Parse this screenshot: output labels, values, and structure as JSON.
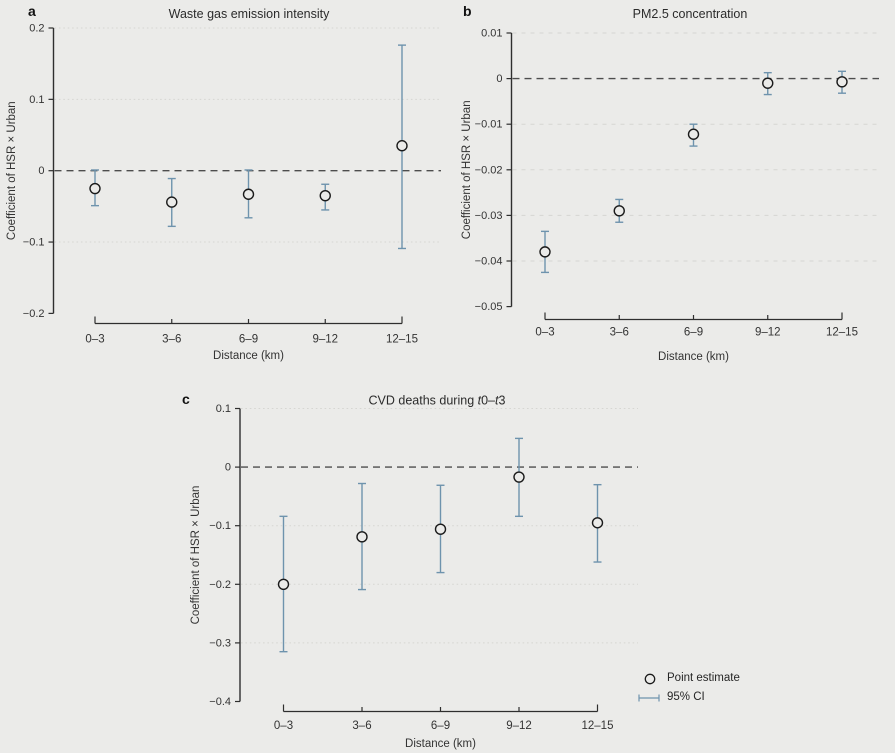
{
  "figure": {
    "background": "#ebebe9",
    "accent_blue": "#6e93ad",
    "marker_outline": "#1a1a1a",
    "axis_color": "#2e2e2e",
    "text_color": "#262626",
    "grid_color": "#d6d6d2",
    "zero_line_color": "#4d4d4d",
    "legend": {
      "point_label": "Point estimate",
      "ci_label": "95% CI"
    }
  },
  "chart_data": [
    {
      "type": "scatter",
      "panel_label": "a",
      "title": "Waste gas emission intensity",
      "title_parts": [
        {
          "text": "Waste gas emission intensity",
          "italic": false
        }
      ],
      "xlabel": "Distance (km)",
      "ylabel": "Coefficient of HSR × Urban",
      "categories": [
        "0–3",
        "3–6",
        "6–9",
        "9–12",
        "12–15"
      ],
      "ylim": [
        -0.2,
        0.2
      ],
      "yticks": [
        0.2,
        0.1,
        0,
        -0.1,
        -0.2
      ],
      "ytick_labels": [
        "0.2",
        "0.1",
        "0",
        "−0.1",
        "−0.2"
      ],
      "zero_line": 0,
      "grid": true,
      "legend_position": "none",
      "series": [
        {
          "name": "Coefficient of HSR × Urban",
          "estimates": [
            -0.025,
            -0.044,
            -0.033,
            -0.035,
            0.035
          ],
          "ci_low": [
            -0.049,
            -0.078,
            -0.066,
            -0.055,
            -0.109
          ],
          "ci_high": [
            0.001,
            -0.011,
            0.001,
            -0.019,
            0.176
          ]
        }
      ]
    },
    {
      "type": "scatter",
      "panel_label": "b",
      "title": "PM2.5 concentration",
      "title_parts": [
        {
          "text": "PM2.5 concentration",
          "italic": false
        }
      ],
      "xlabel": "Distance (km)",
      "ylabel": "Coefficient of HSR × Urban",
      "categories": [
        "0–3",
        "3–6",
        "6–9",
        "9–12",
        "12–15"
      ],
      "ylim": [
        -0.05,
        0.01
      ],
      "yticks": [
        0.01,
        0,
        -0.01,
        -0.02,
        -0.03,
        -0.04,
        -0.05
      ],
      "ytick_labels": [
        "0.01",
        "0",
        "−0.01",
        "−0.02",
        "−0.03",
        "−0.04",
        "−0.05"
      ],
      "zero_line": 0,
      "grid": true,
      "legend_position": "none",
      "series": [
        {
          "name": "Coefficient of HSR × Urban",
          "estimates": [
            -0.038,
            -0.029,
            -0.0122,
            -0.001,
            -0.0007
          ],
          "ci_low": [
            -0.0425,
            -0.0315,
            -0.0148,
            -0.0035,
            -0.0032
          ],
          "ci_high": [
            -0.0335,
            -0.0265,
            -0.01,
            0.0013,
            0.0016
          ]
        }
      ]
    },
    {
      "type": "scatter",
      "panel_label": "c",
      "title": "CVD deaths during t0–t3",
      "title_parts": [
        {
          "text": "CVD deaths during ",
          "italic": false
        },
        {
          "text": "t",
          "italic": true
        },
        {
          "text": "0–",
          "italic": false
        },
        {
          "text": "t",
          "italic": true
        },
        {
          "text": "3",
          "italic": false
        }
      ],
      "xlabel": "Distance (km)",
      "ylabel": "Coefficient of HSR × Urban",
      "categories": [
        "0–3",
        "3–6",
        "6–9",
        "9–12",
        "12–15"
      ],
      "ylim": [
        -0.4,
        0.1
      ],
      "yticks": [
        0.1,
        0,
        -0.1,
        -0.2,
        -0.3,
        -0.4
      ],
      "ytick_labels": [
        "0.1",
        "0",
        "−0.1",
        "−0.2",
        "−0.3",
        "−0.4"
      ],
      "zero_line": 0,
      "grid": true,
      "legend_position": "bottom-right",
      "series": [
        {
          "name": "Coefficient of HSR × Urban",
          "estimates": [
            -0.2,
            -0.119,
            -0.106,
            -0.017,
            -0.095
          ],
          "ci_low": [
            -0.315,
            -0.209,
            -0.18,
            -0.084,
            -0.162
          ],
          "ci_high": [
            -0.084,
            -0.028,
            -0.031,
            0.049,
            -0.03
          ]
        }
      ]
    }
  ]
}
